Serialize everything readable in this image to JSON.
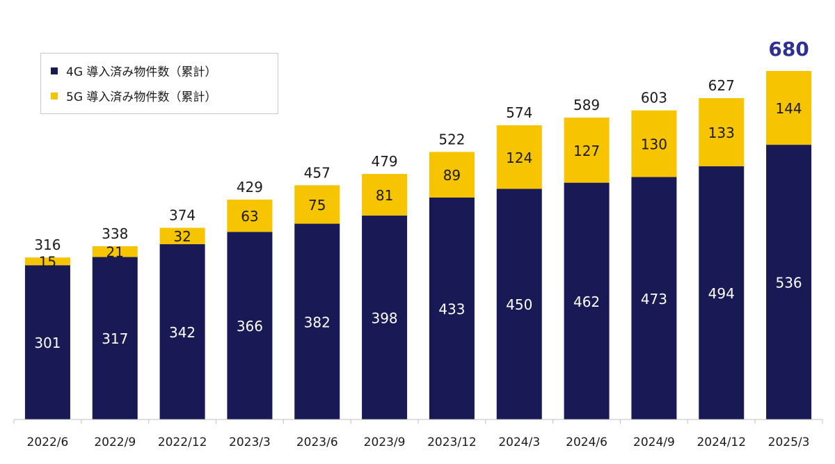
{
  "chart_data": {
    "type": "bar",
    "stacked": true,
    "categories": [
      "2022/6",
      "2022/9",
      "2022/12",
      "2023/3",
      "2023/6",
      "2023/9",
      "2023/12",
      "2024/3",
      "2024/6",
      "2024/9",
      "2024/12",
      "2025/3"
    ],
    "series": [
      {
        "name": "4G 導入済み物件数（累計）",
        "color": "#191a55",
        "label_color": "#ffffff",
        "values": [
          301,
          317,
          342,
          366,
          382,
          398,
          433,
          450,
          462,
          473,
          494,
          536
        ]
      },
      {
        "name": "5G 導入済み物件数（累計）",
        "color": "#f6c400",
        "label_color": "#1a1a1a",
        "values": [
          15,
          21,
          32,
          63,
          75,
          81,
          89,
          124,
          127,
          130,
          133,
          144
        ]
      }
    ],
    "totals": [
      316,
      338,
      374,
      429,
      457,
      479,
      522,
      574,
      589,
      603,
      627,
      680
    ],
    "highlight_total_color": "#2e3192",
    "ylim": [
      0,
      680
    ],
    "grid": false,
    "legend_position": "top-left"
  }
}
